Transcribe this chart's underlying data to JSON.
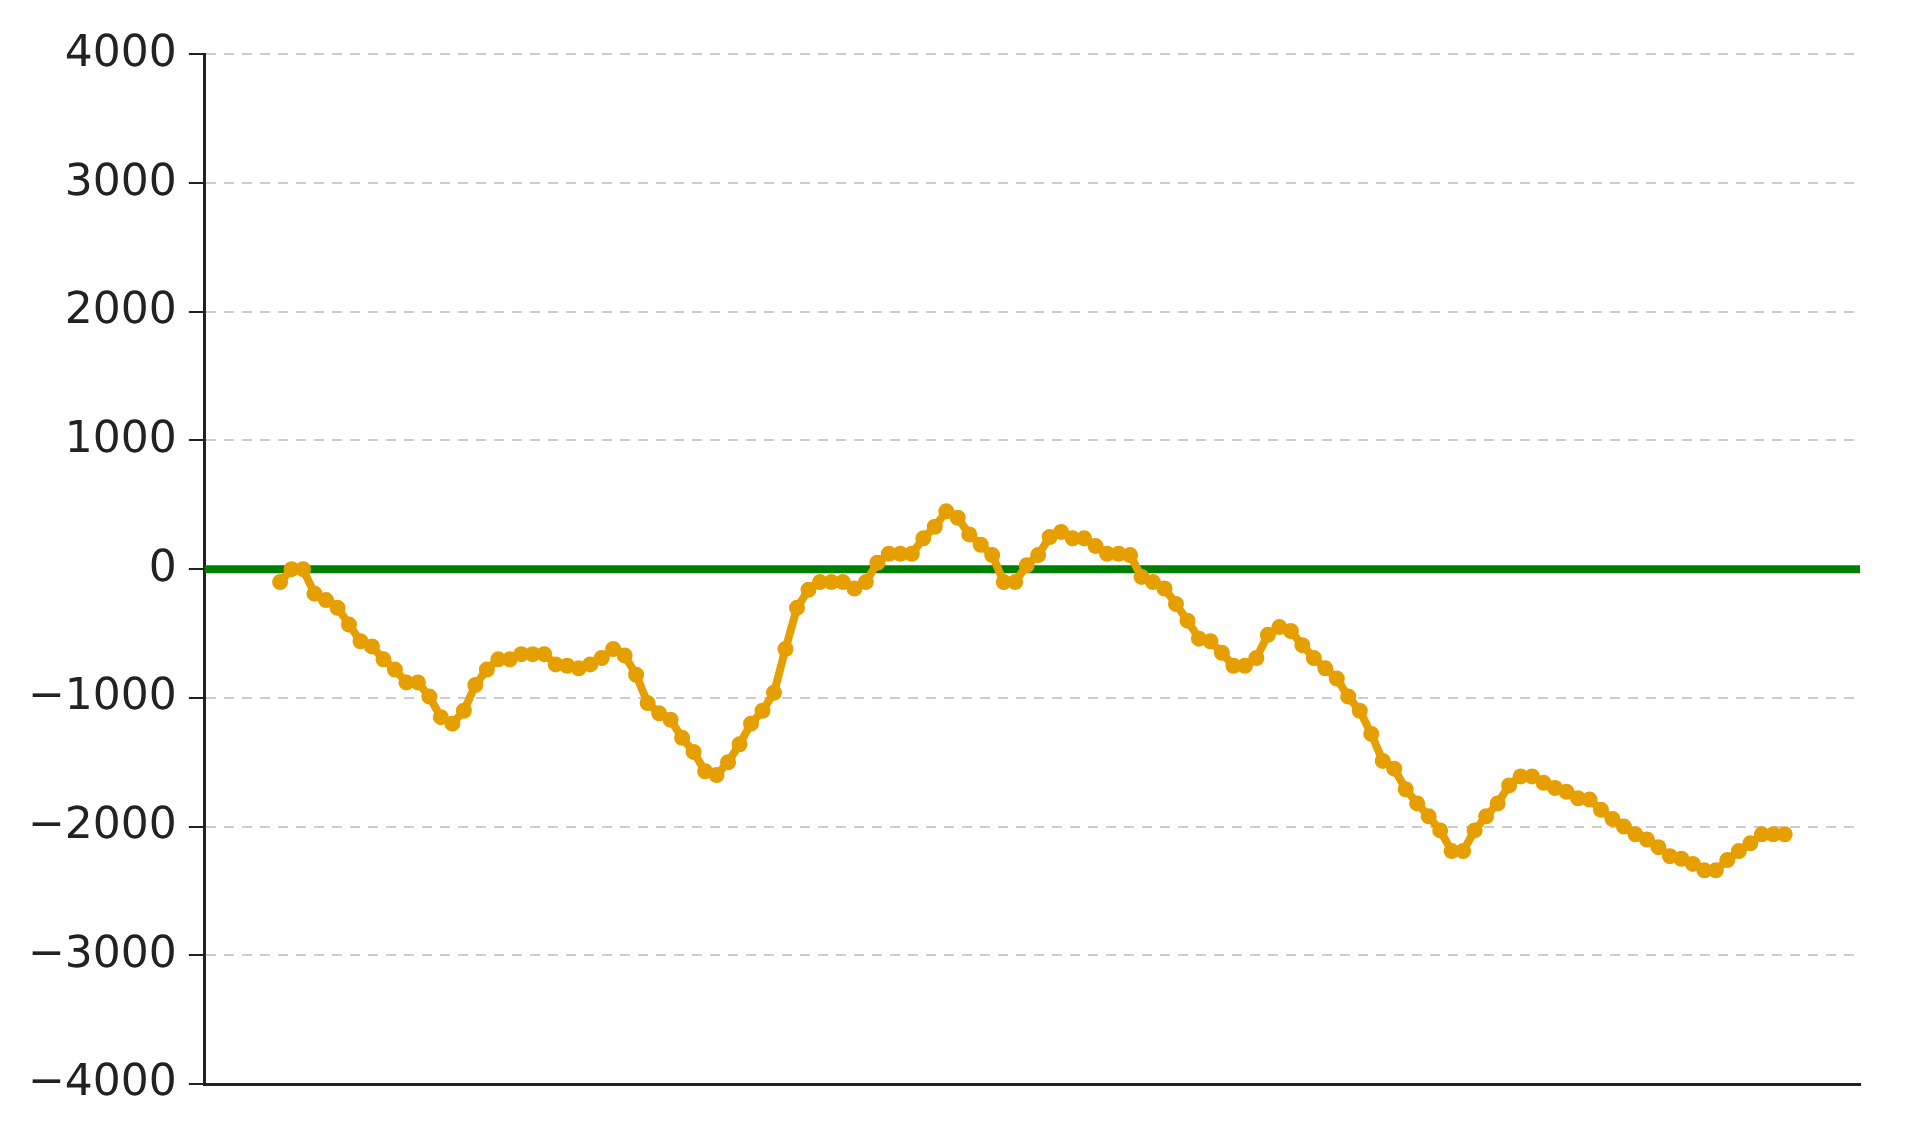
{
  "chart_data": {
    "type": "line",
    "categories": [
      null,
      null,
      null,
      null,
      null,
      null,
      null,
      null,
      null,
      null,
      null,
      null,
      null,
      null,
      null,
      null,
      null,
      null,
      null,
      null,
      null,
      null,
      null,
      null,
      null,
      null,
      null,
      null,
      null,
      null,
      null,
      null,
      null,
      null,
      null,
      null,
      null,
      null,
      null,
      null,
      null,
      null,
      null,
      null,
      null,
      null,
      null,
      null,
      null,
      null,
      null,
      null,
      null,
      null,
      null,
      null,
      null,
      null,
      null,
      null,
      null,
      null,
      null,
      null,
      null,
      null,
      null,
      null,
      null,
      null,
      null,
      null,
      null,
      null,
      null,
      null,
      null,
      null,
      null,
      null,
      null,
      null,
      null,
      null,
      null,
      null,
      null,
      null,
      null,
      null,
      null,
      null,
      null,
      null,
      null,
      null,
      null,
      null,
      null,
      null,
      null,
      null,
      null,
      null,
      null,
      null,
      null,
      null,
      null,
      null,
      null,
      null,
      null,
      null,
      null,
      null,
      null,
      null,
      null,
      null,
      null,
      null,
      null,
      null,
      null,
      null,
      null,
      null,
      null,
      null,
      null,
      null
    ],
    "series": [
      {
        "color": "#e69f00",
        "values": [
          -100,
          0,
          0,
          -190,
          -240,
          -300,
          -430,
          -560,
          -600,
          -700,
          -780,
          -880,
          -880,
          -990,
          -1150,
          -1200,
          -1100,
          -900,
          -780,
          -700,
          -700,
          -660,
          -660,
          -660,
          -740,
          -750,
          -770,
          -740,
          -690,
          -620,
          -670,
          -820,
          -1040,
          -1120,
          -1170,
          -1310,
          -1420,
          -1570,
          -1600,
          -1500,
          -1360,
          -1200,
          -1100,
          -960,
          -620,
          -300,
          -160,
          -100,
          -100,
          -100,
          -150,
          -100,
          50,
          120,
          120,
          120,
          240,
          330,
          450,
          400,
          270,
          190,
          110,
          -100,
          -100,
          30,
          110,
          250,
          290,
          240,
          240,
          180,
          120,
          120,
          110,
          -60,
          -100,
          -150,
          -270,
          -400,
          -540,
          -560,
          -650,
          -750,
          -750,
          -690,
          -510,
          -450,
          -480,
          -590,
          -690,
          -770,
          -850,
          -990,
          -1100,
          -1280,
          -1490,
          -1550,
          -1710,
          -1820,
          -1920,
          -2030,
          -2190,
          -2190,
          -2030,
          -1920,
          -1820,
          -1680,
          -1610,
          -1610,
          -1660,
          -1700,
          -1730,
          -1780,
          -1790,
          -1870,
          -1940,
          -2000,
          -2060,
          -2100,
          -2160,
          -2230,
          -2250,
          -2290,
          -2340,
          -2340,
          -2260,
          -2190,
          -2130,
          -2060,
          -2060,
          -2060
        ]
      }
    ],
    "ylim": [
      -4000,
      4000
    ],
    "yticks": [
      -4000,
      -3000,
      -2000,
      -1000,
      0,
      1000,
      2000,
      3000,
      4000
    ],
    "grid": "y",
    "marker": "circle",
    "line_style": "solid",
    "tick_labels": "y",
    "ref_lines": [
      {
        "axis": "y",
        "value": 0,
        "color": "#008000"
      }
    ]
  }
}
